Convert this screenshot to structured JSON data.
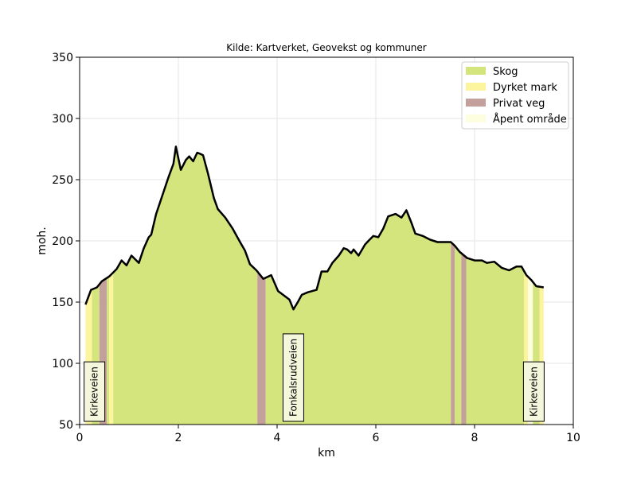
{
  "chart_data": {
    "type": "area",
    "title": "Kilde: Kartverket, Geovekst og kommuner",
    "xlabel": "km",
    "ylabel": "moh.",
    "xlim": [
      0,
      10
    ],
    "ylim": [
      50,
      350
    ],
    "xticks": [
      0,
      2,
      4,
      6,
      8,
      10
    ],
    "yticks": [
      50,
      100,
      150,
      200,
      250,
      300,
      350
    ],
    "grid": true,
    "legend_position": "top-right",
    "colors": {
      "Skog": "#d4e57e",
      "Dyrket mark": "#fdf59e",
      "Privat veg": "#c4a09c",
      "Åpent område": "#fdfde0",
      "profile_line": "#000000",
      "grid": "#e6e6e6"
    },
    "legend": [
      "Skog",
      "Dyrket mark",
      "Privat veg",
      "Åpent område"
    ],
    "profile": {
      "x": [
        0.12,
        0.23,
        0.35,
        0.45,
        0.6,
        0.75,
        0.85,
        0.95,
        1.05,
        1.2,
        1.3,
        1.4,
        1.45,
        1.55,
        1.7,
        1.8,
        1.9,
        1.95,
        2.05,
        2.15,
        2.22,
        2.3,
        2.38,
        2.45,
        2.5,
        2.6,
        2.72,
        2.8,
        2.95,
        3.1,
        3.25,
        3.35,
        3.45,
        3.58,
        3.72,
        3.88,
        4.02,
        4.12,
        4.25,
        4.33,
        4.42,
        4.5,
        4.62,
        4.8,
        4.9,
        5.02,
        5.12,
        5.25,
        5.35,
        5.42,
        5.5,
        5.55,
        5.65,
        5.78,
        5.85,
        5.95,
        6.05,
        6.15,
        6.25,
        6.4,
        6.52,
        6.62,
        6.72,
        6.8,
        6.95,
        7.1,
        7.25,
        7.4,
        7.52,
        7.6,
        7.7,
        7.85,
        8.0,
        8.15,
        8.25,
        8.4,
        8.55,
        8.7,
        8.85,
        8.95,
        9.05,
        9.15,
        9.25,
        9.4
      ],
      "y": [
        148,
        160,
        162,
        167,
        171,
        177,
        184,
        180,
        188,
        182,
        194,
        203,
        205,
        222,
        240,
        252,
        263,
        277,
        258,
        266,
        269,
        265,
        272,
        271,
        270,
        255,
        235,
        226,
        219,
        210,
        199,
        192,
        181,
        176,
        169,
        172,
        159,
        156,
        152,
        144,
        150,
        156,
        158,
        160,
        175,
        175,
        182,
        188,
        194,
        193,
        190,
        193,
        188,
        197,
        200,
        204,
        203,
        210,
        220,
        222,
        219,
        225,
        215,
        206,
        204,
        201,
        199,
        199,
        199,
        196,
        191,
        186,
        184,
        184,
        182,
        183,
        178,
        176,
        179,
        179,
        172,
        168,
        163,
        162
      ]
    },
    "land_cover": [
      {
        "type": "Dyrket mark",
        "x0": 0.12,
        "x1": 0.25
      },
      {
        "type": "Skog",
        "x0": 0.25,
        "x1": 0.4
      },
      {
        "type": "Privat veg",
        "x0": 0.4,
        "x1": 0.55
      },
      {
        "type": "Skog",
        "x0": 0.55,
        "x1": 0.6
      },
      {
        "type": "Dyrket mark",
        "x0": 0.6,
        "x1": 0.68
      },
      {
        "type": "Skog",
        "x0": 0.68,
        "x1": 3.6
      },
      {
        "type": "Privat veg",
        "x0": 3.6,
        "x1": 3.77
      },
      {
        "type": "Skog",
        "x0": 3.77,
        "x1": 7.52
      },
      {
        "type": "Privat veg",
        "x0": 7.52,
        "x1": 7.6
      },
      {
        "type": "Skog",
        "x0": 7.6,
        "x1": 7.73
      },
      {
        "type": "Privat veg",
        "x0": 7.73,
        "x1": 7.83
      },
      {
        "type": "Skog",
        "x0": 7.83,
        "x1": 9.0
      },
      {
        "type": "Dyrket mark",
        "x0": 9.0,
        "x1": 9.08
      },
      {
        "type": "Åpent område",
        "x0": 9.08,
        "x1": 9.18
      },
      {
        "type": "Skog",
        "x0": 9.18,
        "x1": 9.32
      },
      {
        "type": "Dyrket mark",
        "x0": 9.32,
        "x1": 9.4
      }
    ],
    "annotations": [
      {
        "label": "Kirkeveien",
        "x": 0.3,
        "y": 50
      },
      {
        "label": "Fonkalsrudveien",
        "x": 4.33,
        "y": 50
      },
      {
        "label": "Kirkeveien",
        "x": 9.2,
        "y": 50
      }
    ]
  }
}
